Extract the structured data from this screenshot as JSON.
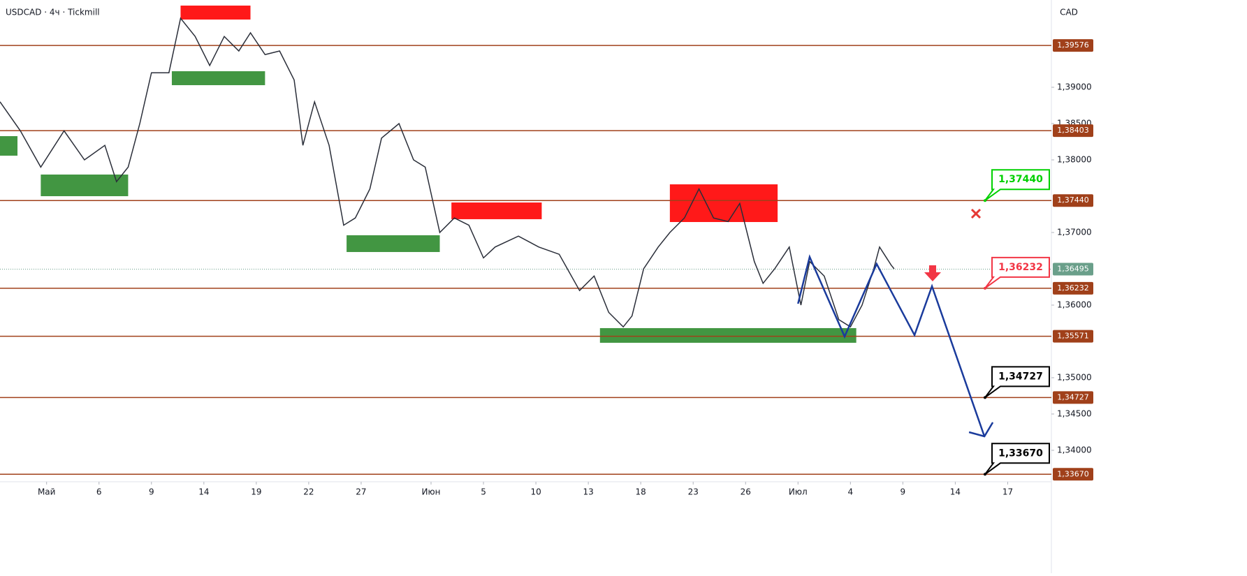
{
  "chart_data": {
    "type": "line",
    "title": "USDCAD · 4ч · Tickmill",
    "currency": "CAD",
    "xlim": [
      0,
      361
    ],
    "ylim": [
      1.33567,
      1.40202
    ],
    "xticks": [
      {
        "value": 16,
        "label": "Май"
      },
      {
        "value": 34,
        "label": "6"
      },
      {
        "value": 52,
        "label": "9"
      },
      {
        "value": 70,
        "label": "14"
      },
      {
        "value": 88,
        "label": "19"
      },
      {
        "value": 106,
        "label": "22"
      },
      {
        "value": 124,
        "label": "27"
      },
      {
        "value": 148,
        "label": "Июн"
      },
      {
        "value": 166,
        "label": "5"
      },
      {
        "value": 184,
        "label": "10"
      },
      {
        "value": 202,
        "label": "13"
      },
      {
        "value": 220,
        "label": "18"
      },
      {
        "value": 238,
        "label": "23"
      },
      {
        "value": 256,
        "label": "26"
      },
      {
        "value": 274,
        "label": "Июл"
      },
      {
        "value": 292,
        "label": "4"
      },
      {
        "value": 310,
        "label": "9"
      },
      {
        "value": 328,
        "label": "14"
      },
      {
        "value": 346,
        "label": "17"
      }
    ],
    "yticks": [
      {
        "value": 1.39,
        "label": "1,39000"
      },
      {
        "value": 1.385,
        "label": "1,38500"
      },
      {
        "value": 1.38,
        "label": "1,38000"
      },
      {
        "value": 1.37,
        "label": "1,37000"
      },
      {
        "value": 1.36,
        "label": "1,36000"
      },
      {
        "value": 1.35,
        "label": "1,35000"
      },
      {
        "value": 1.345,
        "label": "1,34500"
      },
      {
        "value": 1.34,
        "label": "1,34000"
      }
    ],
    "series": [
      {
        "color": "#2a2e39",
        "x": [
          0,
          7,
          14,
          22,
          29,
          36,
          40,
          44,
          48,
          52,
          58,
          62,
          67,
          72,
          77,
          82,
          86,
          91,
          96,
          101,
          104,
          108,
          113,
          118,
          122,
          127,
          131,
          137,
          142,
          146,
          151,
          156,
          161,
          166,
          170,
          178,
          185,
          192,
          199,
          204,
          209,
          214,
          217,
          221,
          226,
          230,
          235,
          240,
          245,
          250,
          254,
          259,
          262,
          266,
          271,
          275,
          278,
          283,
          288,
          292,
          296,
          300,
          302,
          306,
          307
        ],
        "values": [
          1.388,
          1.384,
          1.379,
          1.384,
          1.38,
          1.382,
          1.377,
          1.379,
          1.385,
          1.392,
          1.392,
          1.3995,
          1.397,
          1.393,
          1.397,
          1.395,
          1.3975,
          1.3945,
          1.395,
          1.391,
          1.382,
          1.388,
          1.382,
          1.371,
          1.372,
          1.376,
          1.383,
          1.385,
          1.38,
          1.379,
          1.37,
          1.372,
          1.371,
          1.3665,
          1.368,
          1.3695,
          1.368,
          1.367,
          1.362,
          1.364,
          1.359,
          1.357,
          1.3585,
          1.365,
          1.368,
          1.37,
          1.372,
          1.376,
          1.372,
          1.3715,
          1.374,
          1.366,
          1.363,
          1.365,
          1.368,
          1.36,
          1.366,
          1.364,
          1.358,
          1.357,
          1.36,
          1.365,
          1.368,
          1.3655,
          1.365
        ]
      },
      {
        "color": "#1a3b9c",
        "x": [
          274,
          278,
          290,
          301,
          314,
          320,
          338
        ],
        "values": [
          1.36019,
          1.36663,
          1.35567,
          1.36567,
          1.35587,
          1.3626,
          1.34192
        ]
      }
    ],
    "zones": [
      {
        "x": [
          62,
          86
        ],
        "y": [
          1.39933,
          1.40125
        ],
        "color": "#ff0000"
      },
      {
        "x": [
          59,
          91
        ],
        "y": [
          1.39029,
          1.39221
        ],
        "color": "#2e8b2e"
      },
      {
        "x": [
          0,
          6
        ],
        "y": [
          1.38058,
          1.38327
        ],
        "color": "#2e8b2e"
      },
      {
        "x": [
          14,
          44
        ],
        "y": [
          1.375,
          1.37798
        ],
        "color": "#2e8b2e"
      },
      {
        "x": [
          155,
          186
        ],
        "y": [
          1.37183,
          1.37413
        ],
        "color": "#ff0000"
      },
      {
        "x": [
          230,
          267
        ],
        "y": [
          1.37144,
          1.37663
        ],
        "color": "#ff0000"
      },
      {
        "x": [
          119,
          151
        ],
        "y": [
          1.36731,
          1.36962
        ],
        "color": "#2e8b2e"
      },
      {
        "x": [
          206,
          294
        ],
        "y": [
          1.35481,
          1.35683
        ],
        "color": "#2e8b2e"
      }
    ],
    "levels": [
      {
        "value": 1.39576,
        "label": "1,39576"
      },
      {
        "value": 1.38403,
        "label": "1,38403"
      },
      {
        "value": 1.3744,
        "label": "1,37440"
      },
      {
        "value": 1.36232,
        "label": "1,36232"
      },
      {
        "value": 1.35571,
        "label": "1,35571"
      },
      {
        "value": 1.34727,
        "label": "1,34727"
      },
      {
        "value": 1.3367,
        "label": "1,33670"
      }
    ],
    "level_color": "#a0401a",
    "current_price": {
      "value": 1.36495,
      "label": "1,36495",
      "color": "#6a9f8a"
    },
    "callouts": [
      {
        "value": 1.3744,
        "label": "1,37440",
        "color": "#00d000"
      },
      {
        "value": 1.36232,
        "label": "1,36232",
        "color": "#f23645"
      },
      {
        "value": 1.34727,
        "label": "1,34727",
        "color": "#000000"
      },
      {
        "value": 1.3367,
        "label": "1,33670",
        "color": "#000000"
      }
    ]
  }
}
